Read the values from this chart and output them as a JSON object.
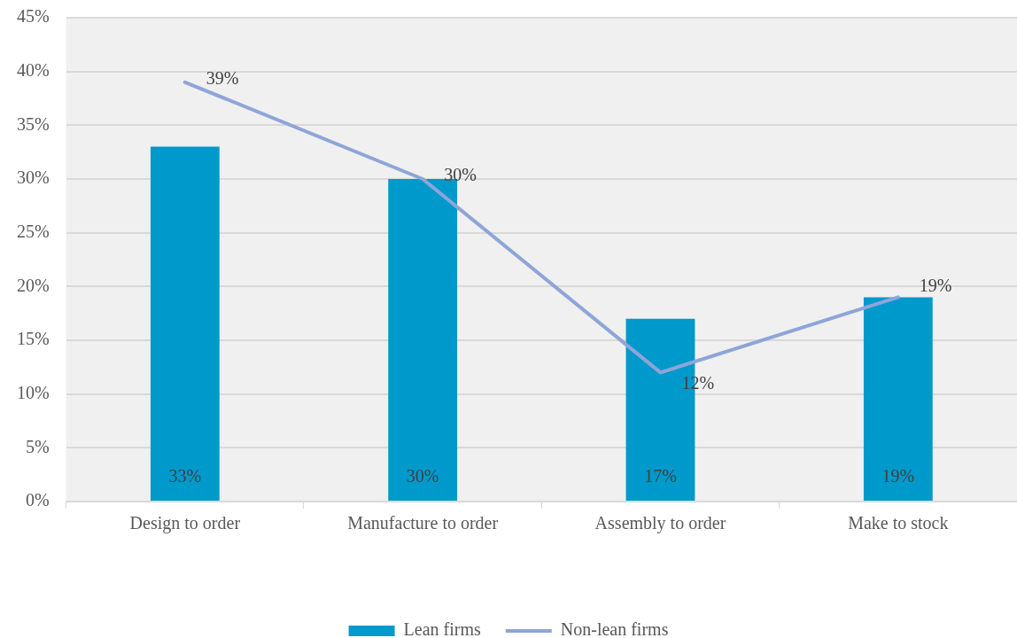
{
  "chart_data": {
    "type": "bar",
    "categories": [
      "Design to order",
      "Manufacture to order",
      "Assembly to order",
      "Make to stock"
    ],
    "series": [
      {
        "name": "Lean firms",
        "type": "bar",
        "color": "#0099cc",
        "values": [
          33,
          30,
          17,
          19
        ],
        "value_labels": [
          "33%",
          "30%",
          "17%",
          "19%"
        ]
      },
      {
        "name": "Non-lean firms",
        "type": "line",
        "color": "#8ea5d8",
        "values": [
          39,
          30,
          12,
          19
        ],
        "value_labels": [
          "39%",
          "30%",
          "12%",
          "19%"
        ]
      }
    ],
    "ylim": [
      0,
      45
    ],
    "yticks": [
      {
        "value": 0,
        "label": "0%"
      },
      {
        "value": 5,
        "label": "5%"
      },
      {
        "value": 10,
        "label": "10%"
      },
      {
        "value": 15,
        "label": "15%"
      },
      {
        "value": 20,
        "label": "20%"
      },
      {
        "value": 25,
        "label": "25%"
      },
      {
        "value": 30,
        "label": "30%"
      },
      {
        "value": 35,
        "label": "35%"
      },
      {
        "value": 40,
        "label": "40%"
      },
      {
        "value": 45,
        "label": "45%"
      }
    ],
    "grid": "y",
    "legend": "bottom",
    "marker": "none",
    "line_style": "solid"
  }
}
